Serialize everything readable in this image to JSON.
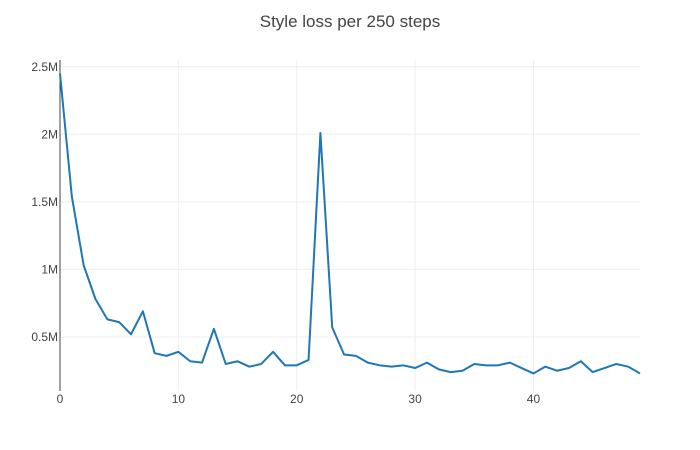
{
  "chart_data": {
    "type": "line",
    "title": "Style loss per 250 steps",
    "xlabel": "",
    "ylabel": "",
    "x_ticks": [
      0,
      10,
      20,
      30,
      40
    ],
    "x_tick_labels": [
      "0",
      "10",
      "20",
      "30",
      "40"
    ],
    "y_ticks": [
      500000,
      1000000,
      1500000,
      2000000,
      2500000
    ],
    "y_tick_labels": [
      "0.5M",
      "1M",
      "1.5M",
      "2M",
      "2.5M"
    ],
    "xlim": [
      0,
      49
    ],
    "ylim": [
      100000,
      2550000
    ],
    "grid": true,
    "legend": "none",
    "colors": {
      "line": "#1f77b4",
      "grid": "#eeeeee",
      "axis": "#444444",
      "text": "#444444"
    },
    "series": [
      {
        "x": [
          0,
          1,
          2,
          3,
          4,
          5,
          6,
          7,
          8,
          9,
          10,
          11,
          12,
          13,
          14,
          15,
          16,
          17,
          18,
          19,
          20,
          21,
          22,
          23,
          24,
          25,
          26,
          27,
          28,
          29,
          30,
          31,
          32,
          33,
          34,
          35,
          36,
          37,
          38,
          39,
          40,
          41,
          42,
          43,
          44,
          45,
          46,
          47,
          48,
          49
        ],
        "values": [
          2450000,
          1540000,
          1030000,
          780000,
          630000,
          610000,
          520000,
          690000,
          380000,
          360000,
          390000,
          320000,
          310000,
          560000,
          300000,
          320000,
          280000,
          300000,
          390000,
          290000,
          290000,
          330000,
          2010000,
          570000,
          370000,
          360000,
          310000,
          290000,
          280000,
          290000,
          270000,
          310000,
          260000,
          240000,
          250000,
          300000,
          290000,
          290000,
          310000,
          270000,
          230000,
          280000,
          250000,
          270000,
          320000,
          240000,
          270000,
          300000,
          280000,
          230000
        ]
      }
    ]
  }
}
